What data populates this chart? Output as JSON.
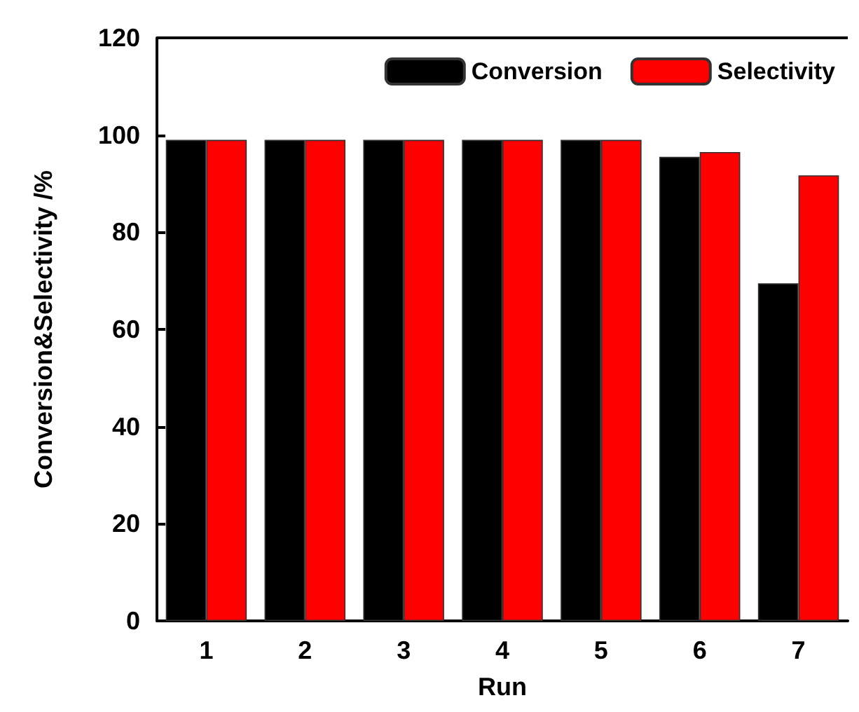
{
  "chart_data": {
    "type": "bar",
    "xlabel": "Run",
    "ylabel": "Conversion&Selectivity /%",
    "categories": [
      "1",
      "2",
      "3",
      "4",
      "5",
      "6",
      "7"
    ],
    "series": [
      {
        "name": "Conversion",
        "color": "#000000",
        "values": [
          99,
          99,
          99,
          99,
          99,
          95.5,
          69.5
        ]
      },
      {
        "name": "Selectivity",
        "color": "#ff0000",
        "values": [
          99,
          99,
          99,
          99,
          99,
          96.5,
          91.7
        ]
      }
    ],
    "ylim": [
      0,
      120
    ],
    "yticks": [
      0,
      20,
      40,
      60,
      80,
      100,
      120
    ],
    "grid": false,
    "legend": "top right"
  }
}
